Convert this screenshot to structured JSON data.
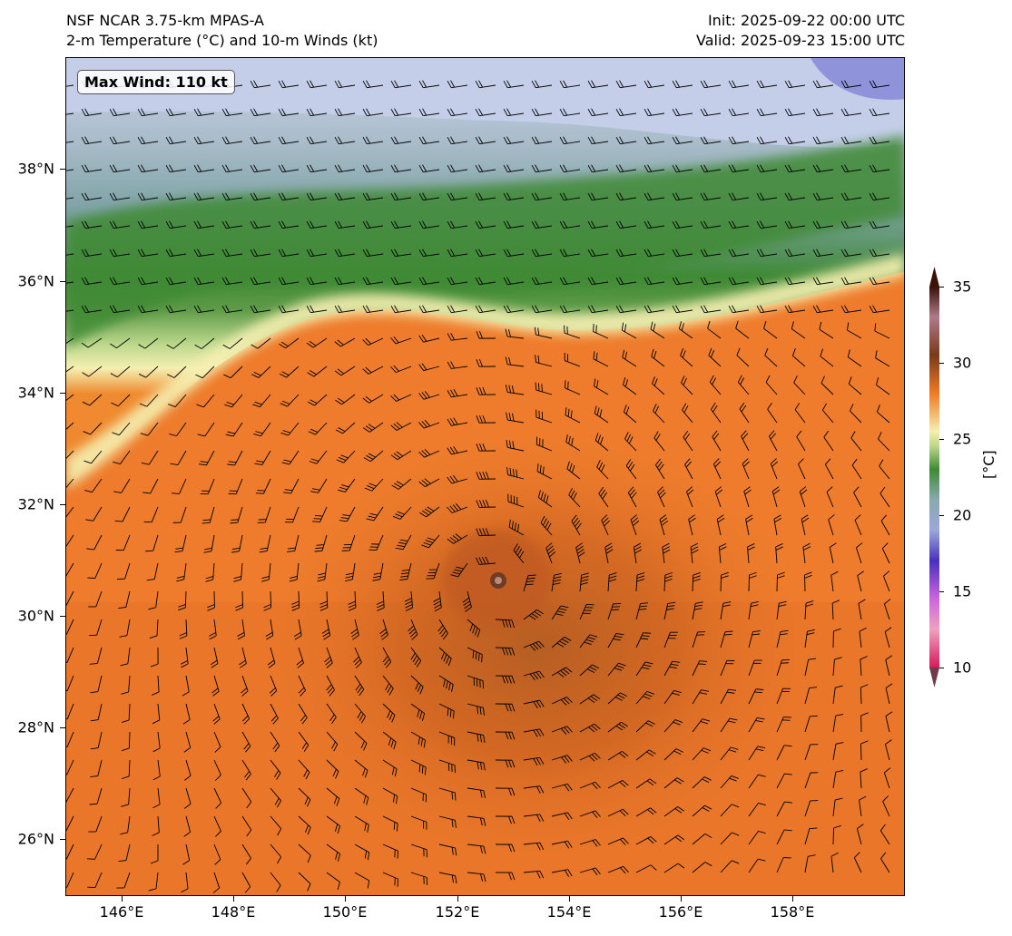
{
  "header": {
    "model": "NSF NCAR 3.75-km MPAS-A",
    "field": "2-m Temperature (°C) and 10-m Winds (kt)",
    "init": "Init: 2025-09-22 00:00 UTC",
    "valid": "Valid: 2025-09-23 15:00 UTC"
  },
  "map": {
    "max_wind_label": "Max Wind: 110 kt",
    "latitude_labels": [
      "38°N",
      "36°N",
      "34°N",
      "32°N",
      "30°N",
      "28°N",
      "26°N"
    ],
    "longitude_labels": [
      "146°E",
      "148°E",
      "150°E",
      "152°E",
      "154°E",
      "156°E",
      "158°E"
    ],
    "extent": {
      "lon": [
        145,
        160
      ],
      "lat": [
        25,
        40
      ]
    },
    "storm_center": {
      "lon": 152.7,
      "lat": 30.6
    }
  },
  "colorbar": {
    "unit": "[°C]",
    "ticks": [
      "35",
      "30",
      "25",
      "20",
      "15",
      "10"
    ],
    "range": [
      10,
      35
    ],
    "colors": {
      "t10": "#d81b5a",
      "t15": "#cc66dd",
      "t17": "#4a2fc0",
      "t19": "#9aa8d8",
      "t21": "#8aa9b0",
      "t23": "#3f8a35",
      "t24": "#b9d68a",
      "t25": "#f5efb0",
      "t27": "#f07a25",
      "t30": "#7a3a18",
      "t35": "#3a1208"
    }
  }
}
